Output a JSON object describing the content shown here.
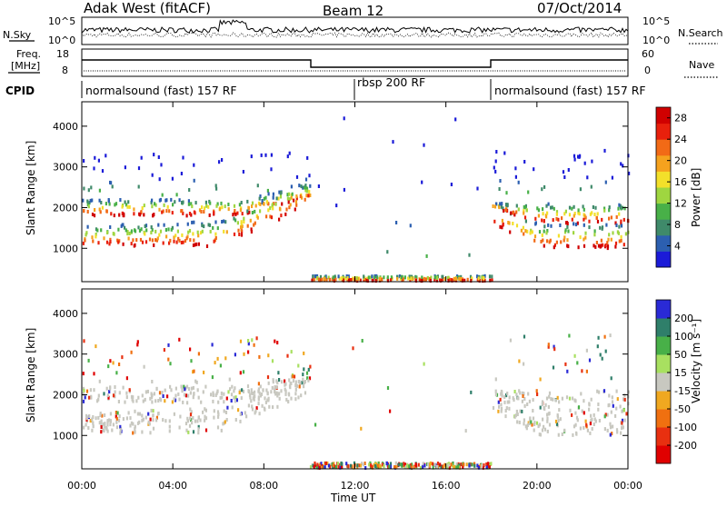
{
  "header": {
    "station": "Adak West (fitACF)",
    "beam": "Beam 12",
    "date": "07/Oct/2014"
  },
  "noise_panel": {
    "left_label": "N.Sky",
    "right_label": "N.Search",
    "left_ticks": [
      "10^5",
      "10^0"
    ],
    "right_ticks": [
      "10^5",
      "10^0"
    ]
  },
  "freq_panel": {
    "left_label_top": "Freq.",
    "left_label_bottom": "[MHz]",
    "right_label": "Nave",
    "left_ticks": [
      "18",
      "8"
    ],
    "right_ticks": [
      "60",
      "0"
    ]
  },
  "cpid_panel": {
    "label": "CPID",
    "segments": [
      {
        "start_hour": 0,
        "end_hour": 12,
        "text": "normalsound (fast) 157 RF"
      },
      {
        "start_hour": 12,
        "end_hour": 18,
        "text": "rbsp 200 RF"
      },
      {
        "start_hour": 18,
        "end_hour": 24,
        "text": "normalsound (fast) 157 RF"
      }
    ]
  },
  "chart_data": [
    {
      "type": "heatmap",
      "panel": "power",
      "ylabel": "Slant Range [km]",
      "yticks": [
        1000,
        2000,
        3000,
        4000
      ],
      "ylim": [
        180,
        4600
      ],
      "colorbar_label": "Power [dB]",
      "colorbar_ticks": [
        "4",
        "8",
        "12",
        "16",
        "20",
        "24",
        "28"
      ],
      "colorbar_range": [
        0,
        30
      ],
      "colors": [
        "#1b1bd8",
        "#2c5fb0",
        "#3f8a6a",
        "#48b048",
        "#9fd640",
        "#f3e02a",
        "#f5a21e",
        "#f26a16",
        "#e8200c",
        "#d00000"
      ]
    },
    {
      "type": "heatmap",
      "panel": "velocity",
      "ylabel": "Slant Range [km]",
      "yticks": [
        1000,
        2000,
        3000,
        4000
      ],
      "ylim": [
        180,
        4600
      ],
      "colorbar_label": "Velocity [m s⁻¹]",
      "colorbar_ticks": [
        "200",
        "100",
        "50",
        "15",
        "-15",
        "-50",
        "-100",
        "-200"
      ],
      "colors": [
        "#2a2ad6",
        "#2f7f6a",
        "#48b048",
        "#a8e060",
        "#c8c8c0",
        "#f0a820",
        "#f07010",
        "#e83010",
        "#e00000"
      ]
    }
  ],
  "time_axis": {
    "label": "Time UT",
    "ticks": [
      "00:00",
      "04:00",
      "08:00",
      "12:00",
      "16:00",
      "20:00",
      "00:00"
    ],
    "range_hours": [
      0,
      24
    ]
  }
}
